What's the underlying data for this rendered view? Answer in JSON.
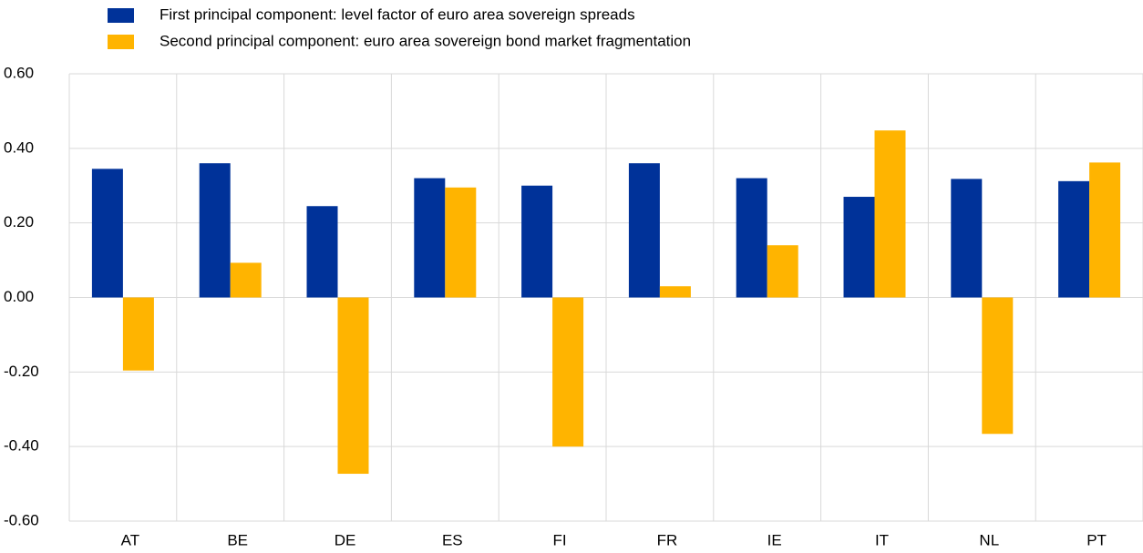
{
  "chart_data": {
    "type": "bar",
    "categories": [
      "AT",
      "BE",
      "DE",
      "ES",
      "FI",
      "FR",
      "IE",
      "IT",
      "NL",
      "PT"
    ],
    "series": [
      {
        "name": "First principal component: level factor of euro area sovereign spreads",
        "color": "#003299",
        "values": [
          0.345,
          0.36,
          0.245,
          0.32,
          0.3,
          0.36,
          0.32,
          0.27,
          0.318,
          0.312
        ]
      },
      {
        "name": "Second principal component: euro area sovereign bond market fragmentation",
        "color": "#ffb400",
        "values": [
          -0.196,
          0.093,
          -0.473,
          0.295,
          -0.4,
          0.03,
          0.14,
          0.448,
          -0.366,
          0.362
        ]
      }
    ],
    "ylim": [
      -0.6,
      0.6
    ],
    "yticks": [
      {
        "value": -0.6,
        "label": "-0.60"
      },
      {
        "value": -0.4,
        "label": "-0.40"
      },
      {
        "value": -0.2,
        "label": "-0.20"
      },
      {
        "value": 0,
        "label": "0.00"
      },
      {
        "value": 0.2,
        "label": "0.20"
      },
      {
        "value": 0.4,
        "label": "0.40"
      },
      {
        "value": 0.6,
        "label": "0.60"
      }
    ],
    "grid": true
  }
}
